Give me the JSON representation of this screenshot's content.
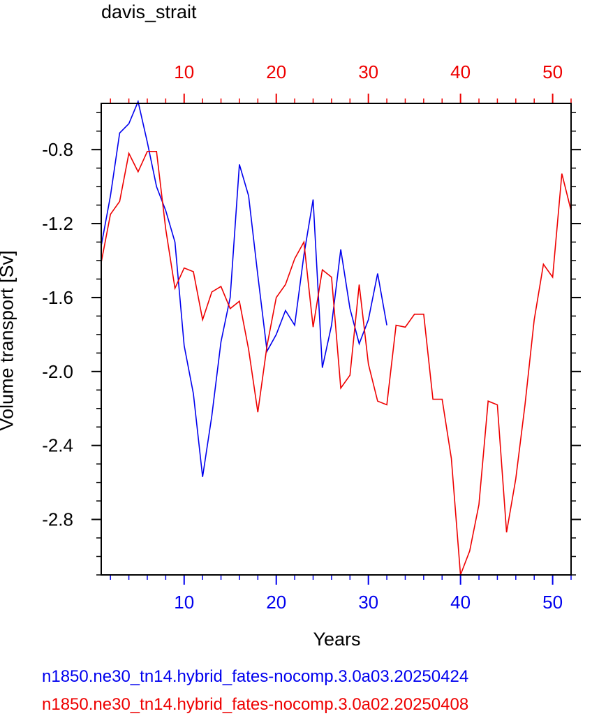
{
  "chart_data": {
    "type": "line",
    "title": "davis_strait",
    "xlabel": "Years",
    "ylabel": "Volume transport [Sv]",
    "xlim": [
      1,
      52
    ],
    "ylim": [
      -3.1,
      -0.55
    ],
    "yticks": [
      -0.8,
      -1.2,
      -1.6,
      -2.0,
      -2.4,
      -2.8
    ],
    "ytick_labels": [
      "-0.8",
      "-1.2",
      "-1.6",
      "-2.0",
      "-2.4",
      "-2.8"
    ],
    "xticks": [
      10,
      20,
      30,
      40,
      50
    ],
    "xtick_labels": [
      "10",
      "20",
      "30",
      "40",
      "50"
    ],
    "grid": false,
    "series": [
      {
        "name": "n1850.ne30_tn14.hybrid_fates-nocomp.3.0a03.20250424",
        "color": "#0000ee",
        "axis": "bottom",
        "x": [
          1,
          2,
          3,
          4,
          5,
          6,
          7,
          8,
          9,
          10,
          11,
          12,
          13,
          14,
          15,
          16,
          17,
          18,
          19,
          20,
          21,
          22,
          23,
          24,
          25,
          26,
          27,
          28,
          29,
          30,
          31,
          32
        ],
        "values": [
          -1.32,
          -1.05,
          -0.71,
          -0.66,
          -0.54,
          -0.76,
          -1.0,
          -1.13,
          -1.3,
          -1.86,
          -2.12,
          -2.57,
          -2.24,
          -1.84,
          -1.6,
          -0.88,
          -1.05,
          -1.48,
          -1.89,
          -1.8,
          -1.67,
          -1.75,
          -1.37,
          -1.07,
          -1.98,
          -1.75,
          -1.34,
          -1.66,
          -1.85,
          -1.72,
          -1.47,
          -1.75
        ]
      },
      {
        "name": "n1850.ne30_tn14.hybrid_fates-nocomp.3.0a02.20250408",
        "color": "#ee0000",
        "axis": "top",
        "x": [
          1,
          2,
          3,
          4,
          5,
          6,
          7,
          8,
          9,
          10,
          11,
          12,
          13,
          14,
          15,
          16,
          17,
          18,
          19,
          20,
          21,
          22,
          23,
          24,
          25,
          26,
          27,
          28,
          29,
          30,
          31,
          32,
          33,
          34,
          35,
          36,
          37,
          38,
          39,
          40,
          41,
          42,
          43,
          44,
          45,
          46,
          47,
          48,
          49,
          50,
          51,
          52
        ],
        "values": [
          -1.41,
          -1.15,
          -1.08,
          -0.82,
          -0.92,
          -0.81,
          -0.81,
          -1.23,
          -1.55,
          -1.44,
          -1.46,
          -1.72,
          -1.57,
          -1.54,
          -1.66,
          -1.62,
          -1.88,
          -2.22,
          -1.86,
          -1.6,
          -1.53,
          -1.39,
          -1.3,
          -1.76,
          -1.45,
          -1.49,
          -2.09,
          -2.02,
          -1.53,
          -1.96,
          -2.16,
          -2.18,
          -1.75,
          -1.76,
          -1.69,
          -1.69,
          -2.15,
          -2.15,
          -2.47,
          -3.1,
          -2.97,
          -2.72,
          -2.16,
          -2.18,
          -2.87,
          -2.58,
          -2.18,
          -1.72,
          -1.42,
          -1.49,
          -0.93,
          -1.13
        ]
      }
    ]
  }
}
